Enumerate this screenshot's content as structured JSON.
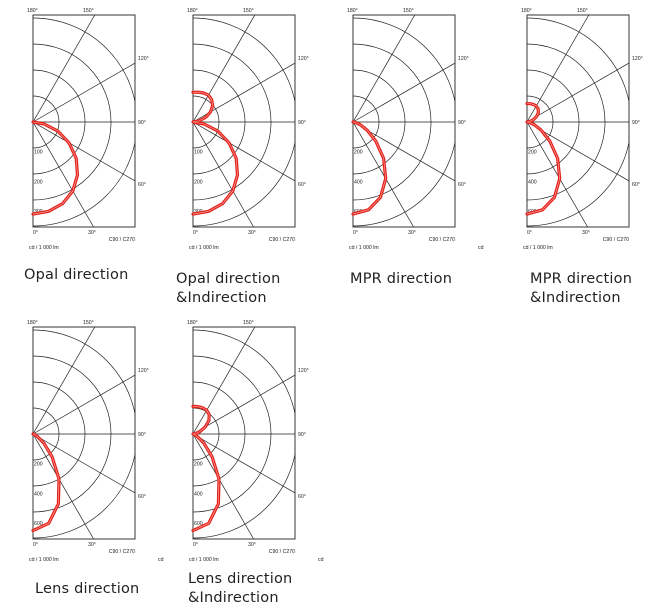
{
  "axis_text": {
    "angle_180": "180°",
    "angle_150": "150°",
    "angle_120": "120°",
    "angle_90": "90°",
    "angle_60": "60°",
    "angle_30": "30°",
    "angle_0": "0°",
    "plane": "C90 / C270",
    "unit": "cd / 1  000 lm",
    "cd": "cd"
  },
  "panels": [
    {
      "caption": [
        "Opal direction"
      ],
      "show_cd": false
    },
    {
      "caption": [
        "Opal direction",
        "&Indirection"
      ],
      "show_cd": false
    },
    {
      "caption": [
        "MPR direction"
      ],
      "show_cd": true
    },
    {
      "caption": [
        "MPR direction",
        "&Indirection"
      ],
      "show_cd": false
    },
    {
      "caption": [
        "Lens direction"
      ],
      "show_cd": true
    },
    {
      "caption": [
        "Lens direction",
        "&Indirection"
      ],
      "show_cd": true
    }
  ],
  "colors": {
    "curve": "#e3231c",
    "grid": "#222222"
  },
  "chart_data": [
    {
      "type": "polar",
      "title": "Opal direction",
      "plane": "C90 / C270",
      "unit": "cd / 1 000 lm",
      "radial_ticks": [
        100,
        200,
        300
      ],
      "rmax": 350,
      "angles_deg": [
        0,
        10,
        20,
        30,
        40,
        50,
        60,
        70,
        80,
        90
      ],
      "series": [
        {
          "values": [
            310,
            305,
            292,
            268,
            233,
            190,
            140,
            88,
            38,
            0
          ]
        }
      ]
    },
    {
      "type": "polar",
      "title": "Opal direction &Indirection",
      "plane": "C90 / C270",
      "unit": "cd / 1 000 lm",
      "radial_ticks": [
        100,
        200,
        300
      ],
      "rmax": 350,
      "angles_deg": [
        0,
        10,
        20,
        30,
        40,
        50,
        60,
        70,
        80,
        90,
        100,
        110,
        120,
        130,
        140,
        150,
        160,
        170,
        180
      ],
      "series": [
        {
          "values": [
            310,
            305,
            292,
            268,
            233,
            190,
            140,
            88,
            38,
            0,
            20,
            45,
            68,
            86,
            98,
            104,
            104,
            102,
            100
          ]
        }
      ]
    },
    {
      "type": "polar",
      "title": "MPR direction",
      "plane": "C90 / C270",
      "unit": "cd / 1 000 lm",
      "radial_ticks": [
        200,
        400,
        600
      ],
      "rmax": 700,
      "angles_deg": [
        0,
        10,
        20,
        30,
        40,
        50,
        60,
        70,
        80,
        90
      ],
      "series": [
        {
          "values": [
            620,
            600,
            540,
            440,
            320,
            200,
            110,
            50,
            15,
            0
          ]
        }
      ]
    },
    {
      "type": "polar",
      "title": "MPR direction &Indirection",
      "plane": "C90 / C270",
      "unit": "cd / 1 000 lm",
      "radial_ticks": [
        200,
        400,
        600
      ],
      "rmax": 700,
      "angles_deg": [
        0,
        10,
        20,
        30,
        40,
        50,
        60,
        70,
        80,
        90,
        100,
        110,
        120,
        130,
        140,
        150,
        160,
        170,
        180
      ],
      "series": [
        {
          "values": [
            620,
            600,
            540,
            440,
            320,
            200,
            110,
            50,
            15,
            0,
            20,
            45,
            75,
            100,
            116,
            124,
            126,
            125,
            124
          ]
        }
      ]
    },
    {
      "type": "polar",
      "title": "Lens direction",
      "plane": "C90 / C270",
      "unit": "cd / 1 000 lm",
      "radial_ticks": [
        200,
        400,
        600
      ],
      "rmax": 700,
      "angles_deg": [
        0,
        10,
        20,
        30,
        40,
        50,
        60,
        70,
        80,
        90
      ],
      "series": [
        {
          "values": [
            650,
            610,
            500,
            350,
            200,
            95,
            35,
            10,
            3,
            0
          ]
        }
      ]
    },
    {
      "type": "polar",
      "title": "Lens direction &Indirection",
      "plane": "C90 / C270",
      "unit": "cd / 1 000 lm",
      "radial_ticks": [
        200,
        400,
        600
      ],
      "rmax": 700,
      "angles_deg": [
        0,
        10,
        20,
        30,
        40,
        50,
        60,
        70,
        80,
        90,
        100,
        110,
        120,
        130,
        140,
        150,
        160,
        170,
        180
      ],
      "series": [
        {
          "values": [
            650,
            610,
            500,
            350,
            200,
            95,
            35,
            10,
            3,
            0,
            20,
            50,
            95,
            140,
            170,
            185,
            188,
            187,
            186
          ]
        }
      ]
    }
  ]
}
